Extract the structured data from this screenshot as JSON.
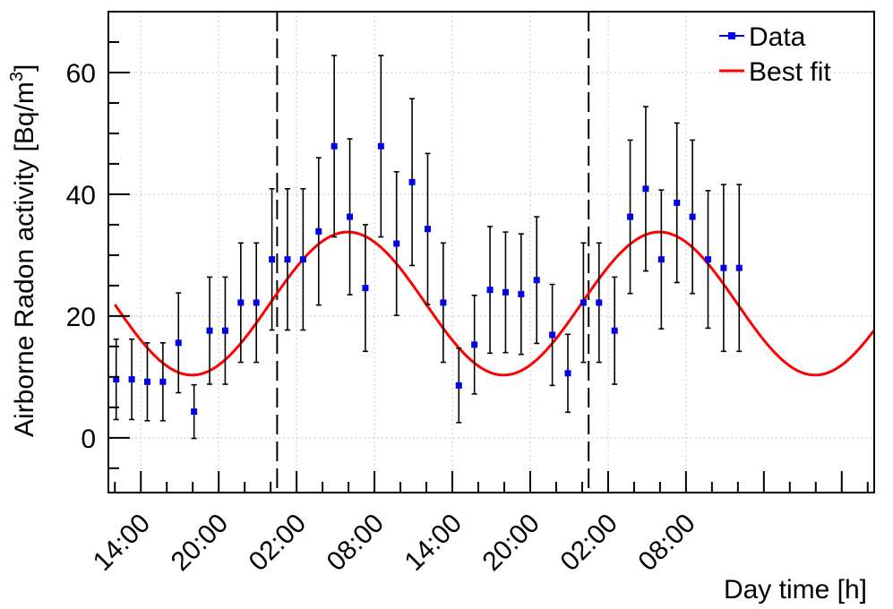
{
  "chart_data": {
    "type": "scatter",
    "xlabel": "Day time [h]",
    "ylabel": "Airborne Radon activity [Bq/m",
    "ylabel_sup": "3",
    "ylabel_close": "]",
    "xlim": [
      11.5,
      70.5
    ],
    "ylim": [
      -9,
      70
    ],
    "x_ticks": [
      {
        "x": 14,
        "label": "14:00"
      },
      {
        "x": 20,
        "label": "20:00"
      },
      {
        "x": 26,
        "label": "02:00"
      },
      {
        "x": 32,
        "label": "08:00"
      },
      {
        "x": 38,
        "label": "14:00"
      },
      {
        "x": 44,
        "label": "20:00"
      },
      {
        "x": 50,
        "label": "02:00"
      },
      {
        "x": 56,
        "label": "08:00"
      }
    ],
    "y_ticks": [
      0,
      20,
      40,
      60
    ],
    "grid": true,
    "vlines": [
      24.5,
      48.5
    ],
    "legend": {
      "position": "top-right",
      "entries": [
        {
          "label": "Data",
          "color": "#0000ee",
          "kind": "marker"
        },
        {
          "label": "Best fit",
          "color": "#ff0000",
          "kind": "line"
        }
      ]
    },
    "series": [
      {
        "name": "Data",
        "color": "#0000ee",
        "x": [
          12.1,
          13.3,
          14.5,
          15.7,
          16.9,
          18.1,
          19.3,
          20.5,
          21.7,
          22.9,
          24.1,
          25.3,
          26.5,
          27.7,
          28.9,
          30.1,
          31.3,
          32.5,
          33.7,
          34.9,
          36.1,
          37.3,
          38.5,
          39.7,
          40.9,
          42.1,
          43.3,
          44.5,
          45.7,
          46.9,
          48.1,
          49.3,
          50.5,
          51.7,
          52.9,
          54.1,
          55.3,
          56.5,
          57.7,
          58.9,
          60.1
        ],
        "y": [
          9.6,
          9.6,
          9.2,
          9.2,
          15.6,
          4.3,
          17.6,
          17.6,
          22.2,
          22.2,
          29.3,
          29.3,
          29.3,
          33.9,
          47.9,
          36.3,
          24.6,
          47.9,
          31.9,
          42.0,
          34.3,
          22.2,
          8.6,
          15.3,
          24.3,
          23.9,
          23.6,
          25.9,
          16.9,
          10.6,
          22.2,
          22.2,
          17.6,
          36.3,
          40.9,
          29.3,
          38.6,
          36.3,
          29.3,
          27.9,
          27.9
        ],
        "yerr": [
          6.6,
          6.6,
          6.4,
          6.4,
          8.2,
          4.4,
          8.8,
          8.8,
          9.8,
          9.8,
          11.6,
          11.6,
          11.6,
          12.1,
          14.9,
          12.8,
          10.4,
          14.9,
          11.8,
          13.7,
          12.4,
          9.8,
          6.1,
          8.1,
          10.4,
          9.9,
          9.9,
          10.4,
          8.3,
          6.4,
          9.8,
          9.8,
          8.8,
          12.6,
          13.5,
          11.4,
          13.1,
          12.6,
          11.3,
          13.7,
          13.7
        ]
      },
      {
        "name": "Best fit",
        "color": "#ff0000",
        "function": "sinusoid",
        "offset": 22.05,
        "amplitude": 11.75,
        "period_h": 24,
        "phase_peak_h": 29.95,
        "x_range": [
          12.0,
          70.5
        ]
      }
    ]
  }
}
